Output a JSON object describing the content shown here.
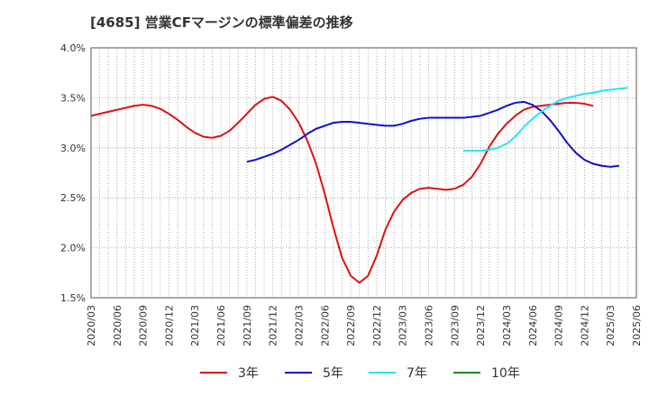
{
  "chart_data": {
    "type": "line",
    "title": "[4685]  営業CFマージンの標準偏差の推移",
    "xlabel": "",
    "ylabel": "",
    "x_ticks": [
      "2020/03",
      "2020/06",
      "2020/09",
      "2020/12",
      "2021/03",
      "2021/06",
      "2021/09",
      "2021/12",
      "2022/03",
      "2022/06",
      "2022/09",
      "2022/12",
      "2023/03",
      "2023/06",
      "2023/09",
      "2023/12",
      "2024/03",
      "2024/06",
      "2024/09",
      "2024/12",
      "2025/03",
      "2025/06"
    ],
    "y_ticks": [
      "1.5%",
      "2.0%",
      "2.5%",
      "3.0%",
      "3.5%",
      "4.0%"
    ],
    "ylim": [
      1.5,
      4.0
    ],
    "grid": true,
    "legend_position": "bottom",
    "series": [
      {
        "name": "3年",
        "color": "#dd1111",
        "start_index": 0,
        "values": [
          3.32,
          3.34,
          3.36,
          3.38,
          3.4,
          3.42,
          3.43,
          3.42,
          3.39,
          3.34,
          3.28,
          3.21,
          3.15,
          3.11,
          3.1,
          3.12,
          3.17,
          3.25,
          3.34,
          3.43,
          3.49,
          3.51,
          3.47,
          3.38,
          3.25,
          3.07,
          2.84,
          2.54,
          2.2,
          1.9,
          1.72,
          1.65,
          1.72,
          1.92,
          2.18,
          2.36,
          2.48,
          2.55,
          2.59,
          2.6,
          2.59,
          2.58,
          2.59,
          2.63,
          2.71,
          2.84,
          3.01,
          3.14,
          3.24,
          3.32,
          3.38,
          3.41,
          3.42,
          3.43,
          3.44,
          3.45,
          3.45,
          3.44,
          3.42
        ]
      },
      {
        "name": "5年",
        "color": "#1111cc",
        "start_index": 18,
        "values": [
          2.86,
          2.88,
          2.91,
          2.94,
          2.98,
          3.03,
          3.08,
          3.14,
          3.19,
          3.22,
          3.25,
          3.26,
          3.26,
          3.25,
          3.24,
          3.23,
          3.22,
          3.22,
          3.24,
          3.27,
          3.29,
          3.3,
          3.3,
          3.3,
          3.3,
          3.3,
          3.31,
          3.32,
          3.35,
          3.38,
          3.42,
          3.45,
          3.46,
          3.43,
          3.37,
          3.28,
          3.17,
          3.05,
          2.95,
          2.88,
          2.84,
          2.82,
          2.81,
          2.82
        ]
      },
      {
        "name": "7年",
        "color": "#22e8e8",
        "start_index": 43,
        "values": [
          2.97,
          2.97,
          2.97,
          2.98,
          3.0,
          3.04,
          3.11,
          3.21,
          3.29,
          3.36,
          3.42,
          3.47,
          3.5,
          3.52,
          3.54,
          3.55,
          3.57,
          3.58,
          3.59,
          3.6
        ]
      },
      {
        "name": "10年",
        "color": "#228822",
        "start_index": 0,
        "values": []
      }
    ]
  }
}
